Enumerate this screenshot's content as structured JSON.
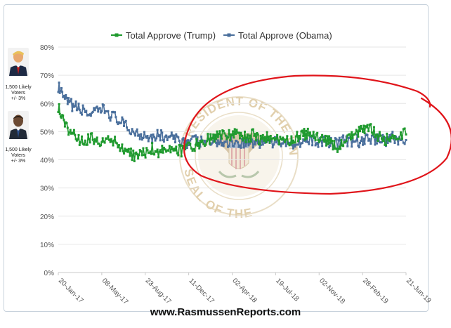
{
  "chart_data": {
    "type": "line",
    "title": "",
    "xlabel": "",
    "ylabel": "",
    "ylim": [
      0,
      80
    ],
    "yticks": [
      "0%",
      "10%",
      "20%",
      "30%",
      "40%",
      "50%",
      "60%",
      "70%",
      "80%"
    ],
    "xtick_labels": [
      "20-Jan-17",
      "08-May-17",
      "23-Aug-17",
      "11-Dec-17",
      "02-Apr-18",
      "19-Jul-18",
      "02-Nov-18",
      "28-Feb-19",
      "21-Jun-19"
    ],
    "x_range": [
      "20-Jan-17",
      "21-Jun-19"
    ],
    "grid": true,
    "legend": "top-center",
    "series": [
      {
        "name": "Total Approve (Trump)",
        "color": "#1f9a2e",
        "points": [
          [
            "2017-01-20",
            59
          ],
          [
            "2017-02-01",
            54
          ],
          [
            "2017-02-15",
            51
          ],
          [
            "2017-03-01",
            50
          ],
          [
            "2017-03-15",
            46
          ],
          [
            "2017-04-01",
            47
          ],
          [
            "2017-04-15",
            48
          ],
          [
            "2017-05-01",
            47
          ],
          [
            "2017-05-15",
            46
          ],
          [
            "2017-06-01",
            47
          ],
          [
            "2017-06-15",
            46
          ],
          [
            "2017-07-01",
            44
          ],
          [
            "2017-07-15",
            43
          ],
          [
            "2017-08-01",
            41
          ],
          [
            "2017-08-15",
            42
          ],
          [
            "2017-09-01",
            43
          ],
          [
            "2017-09-15",
            44
          ],
          [
            "2017-10-01",
            43
          ],
          [
            "2017-10-15",
            44
          ],
          [
            "2017-11-01",
            43
          ],
          [
            "2017-11-15",
            44
          ],
          [
            "2017-12-01",
            43
          ],
          [
            "2017-12-15",
            44
          ],
          [
            "2018-01-01",
            45
          ],
          [
            "2018-01-15",
            46
          ],
          [
            "2018-02-01",
            47
          ],
          [
            "2018-02-15",
            48
          ],
          [
            "2018-03-01",
            48
          ],
          [
            "2018-03-15",
            49
          ],
          [
            "2018-04-01",
            49
          ],
          [
            "2018-04-15",
            50
          ],
          [
            "2018-05-01",
            48
          ],
          [
            "2018-05-15",
            48
          ],
          [
            "2018-06-01",
            49
          ],
          [
            "2018-06-15",
            47
          ],
          [
            "2018-07-01",
            48
          ],
          [
            "2018-07-15",
            47
          ],
          [
            "2018-08-01",
            47
          ],
          [
            "2018-08-15",
            46
          ],
          [
            "2018-09-01",
            47
          ],
          [
            "2018-09-15",
            48
          ],
          [
            "2018-10-01",
            49
          ],
          [
            "2018-10-15",
            49
          ],
          [
            "2018-11-01",
            48
          ],
          [
            "2018-11-15",
            47
          ],
          [
            "2018-12-01",
            47
          ],
          [
            "2018-12-15",
            46
          ],
          [
            "2019-01-01",
            44
          ],
          [
            "2019-01-15",
            46
          ],
          [
            "2019-02-01",
            48
          ],
          [
            "2019-02-15",
            49
          ],
          [
            "2019-03-01",
            51
          ],
          [
            "2019-03-15",
            52
          ],
          [
            "2019-04-01",
            50
          ],
          [
            "2019-04-15",
            48
          ],
          [
            "2019-05-01",
            47
          ],
          [
            "2019-05-15",
            48
          ],
          [
            "2019-06-01",
            49
          ],
          [
            "2019-06-21",
            49
          ]
        ]
      },
      {
        "name": "Total Approve (Obama)",
        "color": "#4a6f9c",
        "points": [
          [
            "2017-01-20",
            66
          ],
          [
            "2017-02-01",
            62
          ],
          [
            "2017-02-15",
            60
          ],
          [
            "2017-03-01",
            59
          ],
          [
            "2017-03-15",
            58
          ],
          [
            "2017-04-01",
            57
          ],
          [
            "2017-04-15",
            56
          ],
          [
            "2017-05-01",
            57
          ],
          [
            "2017-05-15",
            58
          ],
          [
            "2017-06-01",
            56
          ],
          [
            "2017-06-15",
            55
          ],
          [
            "2017-07-01",
            53
          ],
          [
            "2017-07-15",
            51
          ],
          [
            "2017-08-01",
            50
          ],
          [
            "2017-08-15",
            49
          ],
          [
            "2017-09-01",
            49
          ],
          [
            "2017-09-15",
            48
          ],
          [
            "2017-10-01",
            49
          ],
          [
            "2017-10-15",
            48
          ],
          [
            "2017-11-01",
            48
          ],
          [
            "2017-11-15",
            47
          ],
          [
            "2017-12-01",
            47
          ],
          [
            "2017-12-15",
            46
          ],
          [
            "2018-01-01",
            47
          ],
          [
            "2018-01-15",
            46
          ],
          [
            "2018-02-01",
            47
          ],
          [
            "2018-02-15",
            46
          ],
          [
            "2018-03-01",
            47
          ],
          [
            "2018-03-15",
            46
          ],
          [
            "2018-04-01",
            47
          ],
          [
            "2018-04-15",
            46
          ],
          [
            "2018-05-01",
            46
          ],
          [
            "2018-05-15",
            47
          ],
          [
            "2018-06-01",
            46
          ],
          [
            "2018-06-15",
            46
          ],
          [
            "2018-07-01",
            47
          ],
          [
            "2018-07-15",
            46
          ],
          [
            "2018-08-01",
            46
          ],
          [
            "2018-08-15",
            47
          ],
          [
            "2018-09-01",
            46
          ],
          [
            "2018-09-15",
            46
          ],
          [
            "2018-10-01",
            47
          ],
          [
            "2018-10-15",
            46
          ],
          [
            "2018-11-01",
            47
          ],
          [
            "2018-11-15",
            46
          ],
          [
            "2018-12-01",
            47
          ],
          [
            "2018-12-15",
            46
          ],
          [
            "2019-01-01",
            46
          ],
          [
            "2019-01-15",
            47
          ],
          [
            "2019-02-01",
            46
          ],
          [
            "2019-02-15",
            47
          ],
          [
            "2019-03-01",
            46
          ],
          [
            "2019-03-15",
            48
          ],
          [
            "2019-04-01",
            47
          ],
          [
            "2019-04-15",
            48
          ],
          [
            "2019-05-01",
            47
          ],
          [
            "2019-05-15",
            48
          ],
          [
            "2019-06-01",
            47
          ],
          [
            "2019-06-21",
            47
          ]
        ]
      }
    ]
  },
  "sidebar": {
    "trump_voters": [
      "1,500 Likely",
      "Voters",
      "+/- 3%"
    ],
    "obama_voters": [
      "1,500 Likely",
      "Voters",
      "+/- 3%"
    ]
  },
  "seal": {
    "color": "#c9a96a",
    "text_top": "PRESIDENT OF THE UNITED STATES",
    "text_bottom": "SEAL OF THE"
  },
  "annotation": {
    "shape": "hand-drawn circle",
    "color": "#e0141a"
  },
  "footer": {
    "url": "www.RasmussenReports.com"
  }
}
